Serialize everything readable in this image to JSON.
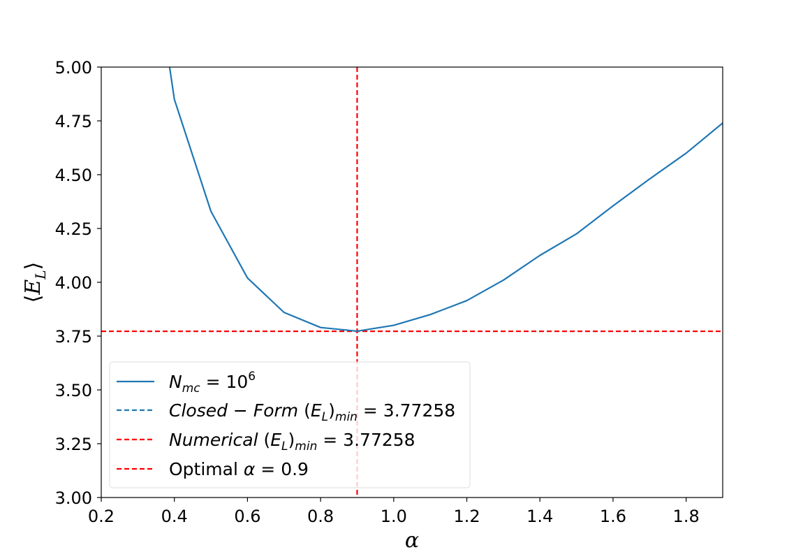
{
  "chart_data": {
    "type": "line",
    "xlabel": "α",
    "ylabel": "⟨E_L⟩",
    "xlim": [
      0.2,
      1.9
    ],
    "ylim": [
      3.0,
      5.0
    ],
    "x_ticks": [
      0.2,
      0.4,
      0.6,
      0.8,
      1.0,
      1.2,
      1.4,
      1.6,
      1.8
    ],
    "x_tick_labels": [
      "0.2",
      "0.4",
      "0.6",
      "0.8",
      "1.0",
      "1.2",
      "1.4",
      "1.6",
      "1.8"
    ],
    "y_ticks": [
      3.0,
      3.25,
      3.5,
      3.75,
      4.0,
      4.25,
      4.5,
      4.75,
      5.0
    ],
    "y_tick_labels": [
      "3.00",
      "3.25",
      "3.50",
      "3.75",
      "4.00",
      "4.25",
      "4.50",
      "4.75",
      "5.00"
    ],
    "grid": false,
    "legend_position": "lower-left",
    "series": [
      {
        "name": "N_mc = 10^6",
        "color": "#1f77b4",
        "style": "solid",
        "x": [
          0.3,
          0.4,
          0.5,
          0.6,
          0.7,
          0.8,
          0.9,
          1.0,
          1.1,
          1.2,
          1.3,
          1.4,
          1.5,
          1.6,
          1.7,
          1.8,
          1.9
        ],
        "y": [
          6.0,
          4.85,
          4.33,
          4.02,
          3.86,
          3.79,
          3.773,
          3.8,
          3.85,
          3.915,
          4.01,
          4.125,
          4.225,
          4.355,
          4.48,
          4.6,
          4.74
        ]
      }
    ],
    "reference_lines": [
      {
        "name": "Closed-Form (E_L)min = 3.77258",
        "orientation": "horizontal",
        "value": 3.77258,
        "color": "#1f77b4",
        "style": "dashed"
      },
      {
        "name": "Numerical (E_L)min = 3.77258",
        "orientation": "horizontal",
        "value": 3.77258,
        "color": "#ff0000",
        "style": "dashed"
      },
      {
        "name": "Optimal α = 0.9",
        "orientation": "vertical",
        "value": 0.9,
        "color": "#ff0000",
        "style": "dashed"
      }
    ]
  }
}
